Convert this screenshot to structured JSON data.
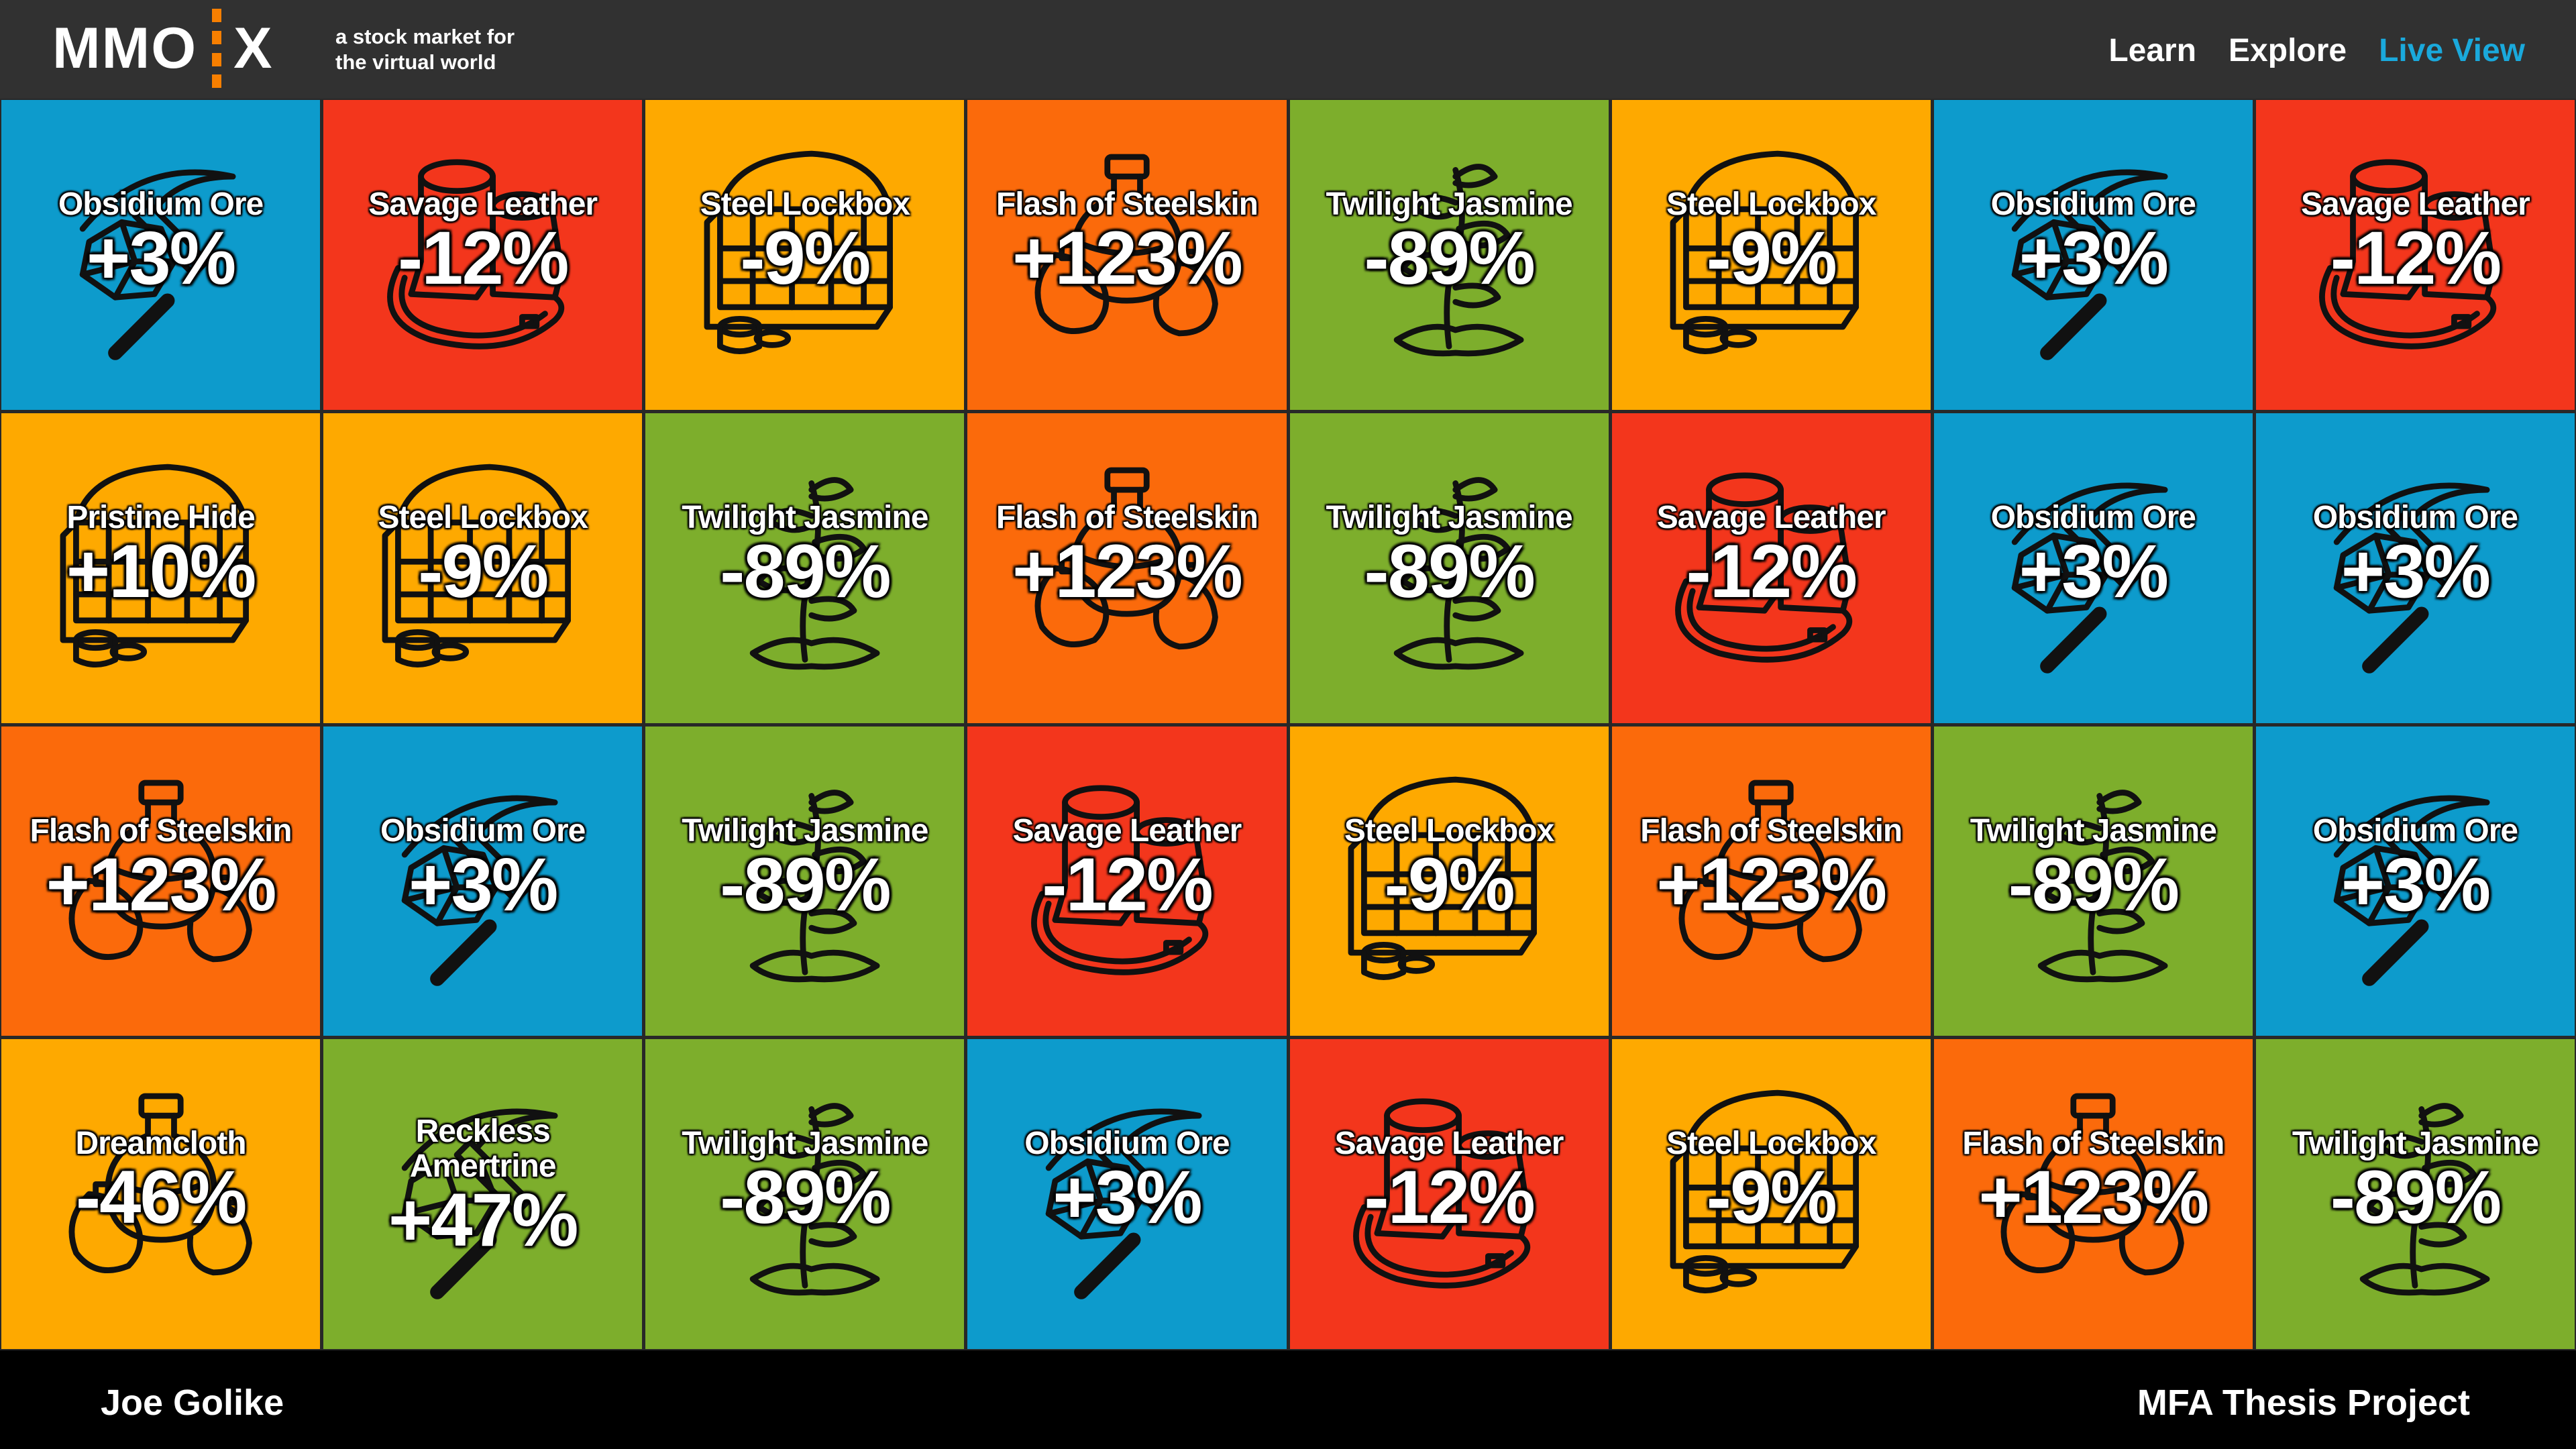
{
  "header": {
    "logo_left": "MMO",
    "logo_right": "X",
    "tagline_line1": "a stock market for",
    "tagline_line2": "the  virtual world",
    "nav": [
      "Learn",
      "Explore",
      "Live View"
    ],
    "active_nav": "Live View"
  },
  "colors": {
    "blue": "#0d9bcc",
    "red": "#f3361c",
    "yellow": "#fea900",
    "orange": "#fb6a0b",
    "green": "#7dae2c",
    "accent_nav": "#1aa9dc",
    "logo_accent": "#f77f00"
  },
  "tiles": [
    {
      "name": "Obsidium Ore",
      "change": "+3%",
      "color": "blue",
      "icon": "pickaxe-ore-icon"
    },
    {
      "name": "Savage Leather",
      "change": "-12%",
      "color": "red",
      "icon": "boots-icon"
    },
    {
      "name": "Steel Lockbox",
      "change": "-9%",
      "color": "yellow",
      "icon": "chest-icon"
    },
    {
      "name": "Flash of Steelskin",
      "change": "+123%",
      "color": "orange",
      "icon": "potion-icon"
    },
    {
      "name": "Twilight Jasmine",
      "change": "-89%",
      "color": "green",
      "icon": "plant-icon"
    },
    {
      "name": "Steel Lockbox",
      "change": "-9%",
      "color": "yellow",
      "icon": "chest-icon"
    },
    {
      "name": "Obsidium Ore",
      "change": "+3%",
      "color": "blue",
      "icon": "pickaxe-ore-icon"
    },
    {
      "name": "Savage Leather",
      "change": "-12%",
      "color": "red",
      "icon": "boots-icon"
    },
    {
      "name": "Pristine Hide",
      "change": "+10%",
      "color": "yellow",
      "icon": "chest-icon"
    },
    {
      "name": "Steel Lockbox",
      "change": "-9%",
      "color": "yellow",
      "icon": "chest-icon"
    },
    {
      "name": "Twilight Jasmine",
      "change": "-89%",
      "color": "green",
      "icon": "plant-icon"
    },
    {
      "name": "Flash of Steelskin",
      "change": "+123%",
      "color": "orange",
      "icon": "potion-icon"
    },
    {
      "name": "Twilight Jasmine",
      "change": "-89%",
      "color": "green",
      "icon": "plant-icon"
    },
    {
      "name": "Savage Leather",
      "change": "-12%",
      "color": "red",
      "icon": "boots-icon"
    },
    {
      "name": "Obsidium Ore",
      "change": "+3%",
      "color": "blue",
      "icon": "pickaxe-ore-icon"
    },
    {
      "name": "Obsidium Ore",
      "change": "+3%",
      "color": "blue",
      "icon": "pickaxe-ore-icon"
    },
    {
      "name": "Flash of Steelskin",
      "change": "+123%",
      "color": "orange",
      "icon": "potion-icon"
    },
    {
      "name": "Obsidium Ore",
      "change": "+3%",
      "color": "blue",
      "icon": "pickaxe-ore-icon"
    },
    {
      "name": "Twilight Jasmine",
      "change": "-89%",
      "color": "green",
      "icon": "plant-icon"
    },
    {
      "name": "Savage Leather",
      "change": "-12%",
      "color": "red",
      "icon": "boots-icon"
    },
    {
      "name": "Steel Lockbox",
      "change": "-9%",
      "color": "yellow",
      "icon": "chest-icon"
    },
    {
      "name": "Flash of Steelskin",
      "change": "+123%",
      "color": "orange",
      "icon": "potion-icon"
    },
    {
      "name": "Twilight Jasmine",
      "change": "-89%",
      "color": "green",
      "icon": "plant-icon"
    },
    {
      "name": "Obsidium Ore",
      "change": "+3%",
      "color": "blue",
      "icon": "pickaxe-ore-icon"
    },
    {
      "name": "Dreamcloth",
      "change": "-46%",
      "color": "yellow",
      "icon": "potion-icon"
    },
    {
      "name": "Reckless Amertrine",
      "change": "+47%",
      "color": "green",
      "icon": "pickaxe-ore-icon",
      "two_line": true
    },
    {
      "name": "Twilight Jasmine",
      "change": "-89%",
      "color": "green",
      "icon": "plant-icon"
    },
    {
      "name": "Obsidium Ore",
      "change": "+3%",
      "color": "blue",
      "icon": "pickaxe-ore-icon"
    },
    {
      "name": "Savage Leather",
      "change": "-12%",
      "color": "red",
      "icon": "boots-icon"
    },
    {
      "name": "Steel Lockbox",
      "change": "-9%",
      "color": "yellow",
      "icon": "chest-icon"
    },
    {
      "name": "Flash of Steelskin",
      "change": "+123%",
      "color": "orange",
      "icon": "potion-icon"
    },
    {
      "name": "Twilight Jasmine",
      "change": "-89%",
      "color": "green",
      "icon": "plant-icon"
    }
  ],
  "footer": {
    "author": "Joe Golike",
    "project": "MFA Thesis Project"
  }
}
